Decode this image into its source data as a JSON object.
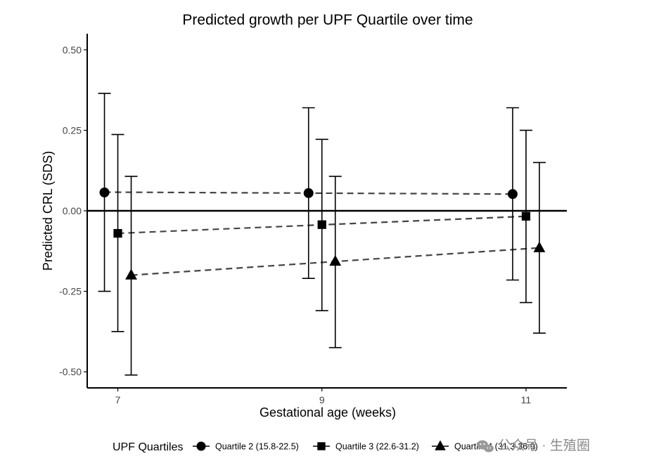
{
  "chart_data": {
    "type": "scatter",
    "title": "Predicted growth per UPF Quartile over time",
    "xlabel": "Gestational age (weeks)",
    "ylabel": "Predicted CRL (SDS)",
    "x_ticks": [
      7,
      9,
      11
    ],
    "y_ticks": [
      0.5,
      0.25,
      0.0,
      -0.25,
      -0.5
    ],
    "y_tick_labels": [
      "0.50",
      "0.25",
      "0.00",
      "-0.25",
      "-0.50"
    ],
    "xlim": [
      6.7,
      11.4
    ],
    "ylim": [
      -0.55,
      0.55
    ],
    "reference_line_y": 0.0,
    "grid": false,
    "legend": {
      "title": "UPF Quartiles",
      "position": "bottom",
      "entries": [
        "Quartile 2 (15.8-22.5)",
        "Quartile 3 (22.6-31.2)",
        "Quartile 4 (31.3-36.9)"
      ]
    },
    "series": [
      {
        "name": "Quartile 2 (15.8-22.5)",
        "marker": "circle",
        "x": [
          7,
          9,
          11
        ],
        "y": [
          0.057,
          0.055,
          0.052
        ],
        "ci_low": [
          -0.25,
          -0.21,
          -0.215
        ],
        "ci_high": [
          0.365,
          0.32,
          0.32
        ],
        "trend": [
          0.058,
          0.052
        ]
      },
      {
        "name": "Quartile 3 (22.6-31.2)",
        "marker": "square",
        "x": [
          7,
          9,
          11
        ],
        "y": [
          -0.07,
          -0.043,
          -0.017
        ],
        "ci_low": [
          -0.375,
          -0.31,
          -0.285
        ],
        "ci_high": [
          0.237,
          0.222,
          0.25
        ],
        "trend": [
          -0.07,
          -0.017
        ]
      },
      {
        "name": "Quartile 4 (31.3-36.9)",
        "marker": "triangle",
        "x": [
          7,
          9,
          11
        ],
        "y": [
          -0.2,
          -0.157,
          -0.115
        ],
        "ci_low": [
          -0.51,
          -0.425,
          -0.38
        ],
        "ci_high": [
          0.107,
          0.107,
          0.15
        ],
        "trend": [
          -0.2,
          -0.115
        ]
      }
    ]
  },
  "watermark": {
    "icon": "wechat-icon",
    "text": "公众号 · 生殖圈"
  },
  "colors": {
    "ink": "#000000",
    "trend": "#444444",
    "tick": "#444444",
    "watermark": "#8a8a8a"
  }
}
